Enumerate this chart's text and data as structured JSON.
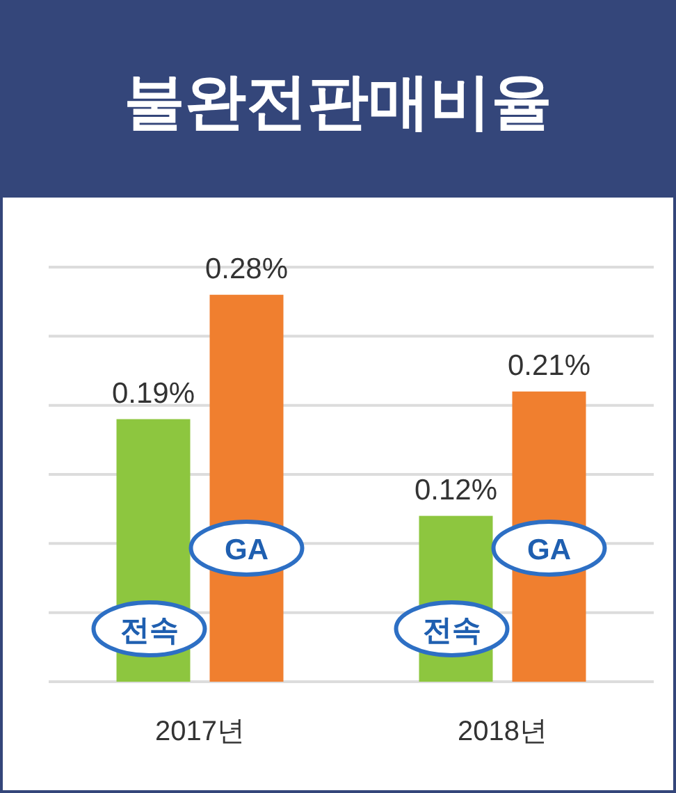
{
  "chart_data": {
    "type": "bar",
    "title": "불완전판매비율",
    "categories": [
      "2017년",
      "2018년"
    ],
    "series": [
      {
        "name": "전속",
        "color": "#8dc63f",
        "values": [
          0.19,
          0.12
        ],
        "value_labels": [
          "0.19%",
          "0.12%"
        ]
      },
      {
        "name": "GA",
        "color": "#f07f2f",
        "values": [
          0.28,
          0.21
        ],
        "value_labels": [
          "0.28%",
          "0.21%"
        ]
      }
    ],
    "ylim": [
      0,
      0.3
    ],
    "yticks": [
      {
        "value": 0,
        "label": null
      },
      {
        "value": 0.05,
        "label": null
      },
      {
        "value": 0.1,
        "label": null
      },
      {
        "value": 0.15,
        "label": null
      },
      {
        "value": 0.2,
        "label": null
      },
      {
        "value": 0.25,
        "label": null
      },
      {
        "value": 0.3,
        "label": null
      }
    ],
    "grid": "y",
    "tick_labels": "x"
  }
}
